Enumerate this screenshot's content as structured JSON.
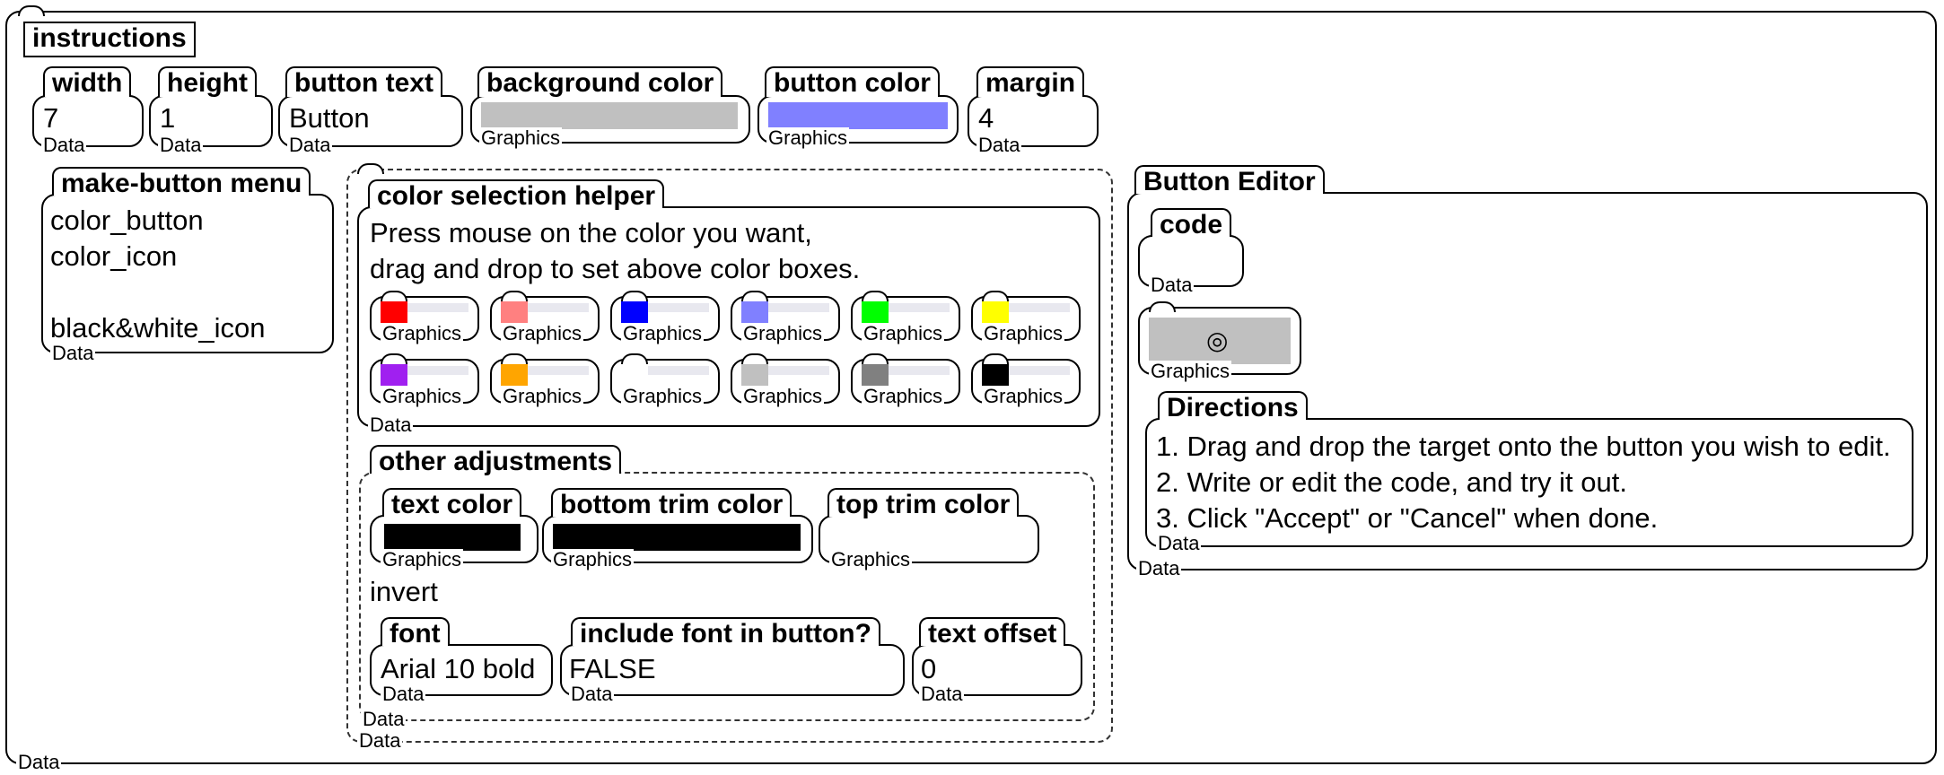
{
  "instructions": {
    "label": "instructions",
    "type": "Data"
  },
  "properties": [
    {
      "name": "width",
      "value": "7",
      "type": "Data"
    },
    {
      "name": "height",
      "value": "1",
      "type": "Data"
    },
    {
      "name": "button text",
      "value": "Button",
      "type": "Data"
    },
    {
      "name": "background color",
      "swatch": "#c0c0c0",
      "type": "Graphics"
    },
    {
      "name": "button color",
      "swatch": "#8080ff",
      "type": "Graphics"
    },
    {
      "name": "margin",
      "value": "4",
      "type": "Data"
    }
  ],
  "make_button_menu": {
    "name": "make-button menu",
    "items": [
      "color_button",
      "color_icon",
      "",
      "black&white_icon"
    ],
    "type": "Data"
  },
  "color_helper": {
    "name": "color selection helper",
    "line1": "Press mouse on the color you want,",
    "line2": "drag and drop to set above color boxes.",
    "swatches_row1": [
      {
        "color": "#ff0000",
        "type": "Graphics"
      },
      {
        "color": "#ff8080",
        "type": "Graphics"
      },
      {
        "color": "#0000ff",
        "type": "Graphics"
      },
      {
        "color": "#8080ff",
        "type": "Graphics"
      },
      {
        "color": "#00ff00",
        "type": "Graphics"
      },
      {
        "color": "#ffff00",
        "type": "Graphics"
      }
    ],
    "swatches_row2": [
      {
        "color": "#a020f0",
        "type": "Graphics"
      },
      {
        "color": "#ffa500",
        "type": "Graphics"
      },
      {
        "color": "#ffffff",
        "type": "Graphics"
      },
      {
        "color": "#c0c0c0",
        "type": "Graphics"
      },
      {
        "color": "#808080",
        "type": "Graphics"
      },
      {
        "color": "#000000",
        "type": "Graphics"
      }
    ],
    "type": "Data"
  },
  "other_adjustments": {
    "name": "other adjustments",
    "text_color": {
      "name": "text color",
      "swatch": "#000000",
      "type": "Graphics"
    },
    "bottom_trim": {
      "name": "bottom trim color",
      "swatch": "#000000",
      "type": "Graphics"
    },
    "top_trim": {
      "name": "top trim color",
      "type": "Graphics"
    },
    "invert": "invert",
    "font": {
      "name": "font",
      "value": "Arial 10 bold",
      "type": "Data"
    },
    "include_font": {
      "name": "include font in button?",
      "value": "FALSE",
      "type": "Data"
    },
    "text_offset": {
      "name": "text offset",
      "value": "0",
      "type": "Data"
    },
    "type": "Data"
  },
  "outer_helper_type": "Data",
  "button_editor": {
    "name": "Button Editor",
    "code": {
      "name": "code",
      "type": "Data"
    },
    "target": {
      "type": "Graphics",
      "glyph": "◎"
    },
    "directions": {
      "name": "Directions",
      "lines": [
        "1. Drag and drop the target onto the button you wish to edit.",
        "2. Write or edit the code, and try it out.",
        "3. Click \"Accept\" or \"Cancel\" when done."
      ],
      "type": "Data"
    },
    "type": "Data"
  },
  "root_type": "Data"
}
